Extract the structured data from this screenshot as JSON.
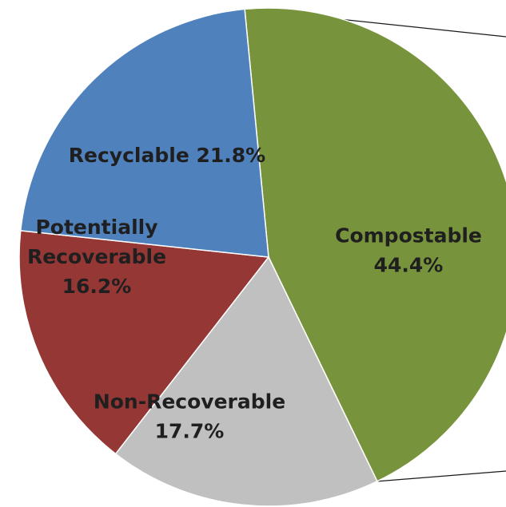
{
  "chart_data": {
    "type": "pie",
    "title": "",
    "slices": [
      {
        "label": "Compostable",
        "value": 44.4,
        "value_label": "44.4%",
        "color": "#77933c"
      },
      {
        "label": "Non-Recoverable",
        "value": 17.7,
        "value_label": "17.7%",
        "color": "#c0c0c0"
      },
      {
        "label": "Potentially Recoverable",
        "value": 16.2,
        "value_label": "16.2%",
        "color": "#953735"
      },
      {
        "label": "Recyclable",
        "value": 21.8,
        "value_label": "21.8%",
        "color": "#4f81bd"
      }
    ],
    "legend": "none",
    "connector_lines": true
  }
}
